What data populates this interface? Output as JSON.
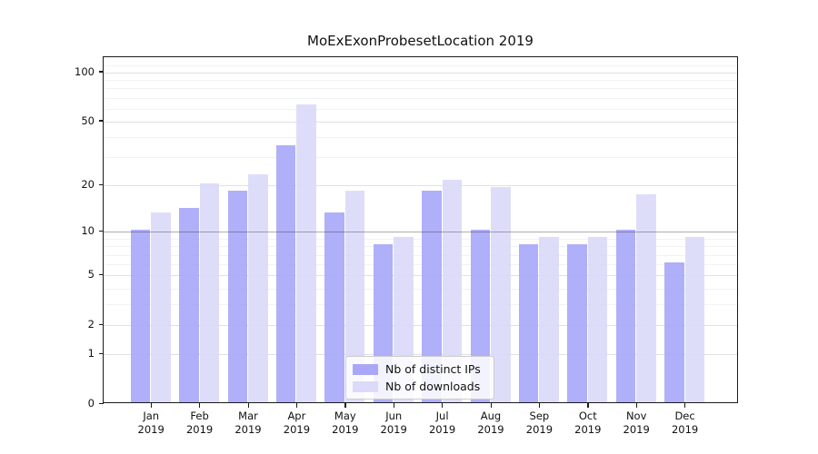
{
  "title": "MoExExonProbesetLocation 2019",
  "chart_data": {
    "type": "bar",
    "categories": [
      "Jan",
      "Feb",
      "Mar",
      "Apr",
      "May",
      "Jun",
      "Jul",
      "Aug",
      "Sep",
      "Oct",
      "Nov",
      "Dec"
    ],
    "year": "2019",
    "series": [
      {
        "name": "Nb of distinct IPs",
        "color": "#a9a8f8",
        "values": [
          10,
          14,
          18,
          35,
          13,
          8,
          18,
          10,
          8,
          8,
          10,
          6
        ]
      },
      {
        "name": "Nb of downloads",
        "color": "#dbdaf9",
        "values": [
          13,
          20,
          23,
          62,
          18,
          9,
          21,
          19,
          9,
          9,
          17,
          9
        ]
      }
    ],
    "title": "MoExExonProbesetLocation 2019",
    "xlabel": "",
    "ylabel": "",
    "y_scale": "log1p",
    "ylim": [
      0,
      124
    ],
    "y_ticks": [
      0,
      1,
      2,
      5,
      10,
      20,
      50,
      100
    ],
    "y_minor_gridlines": [
      3,
      4,
      6,
      7,
      8,
      9,
      30,
      40,
      60,
      70,
      80,
      90,
      110
    ],
    "y_major_gridlines": [
      1,
      2,
      5,
      20,
      50,
      100
    ],
    "y_emphasized_gridline": 10,
    "grid": true,
    "legend_position": "lower center"
  },
  "legend": {
    "items": [
      {
        "label": "Nb of distinct IPs",
        "swatch": "ips-swatch"
      },
      {
        "label": "Nb of downloads",
        "swatch": "downloads-swatch"
      }
    ]
  }
}
